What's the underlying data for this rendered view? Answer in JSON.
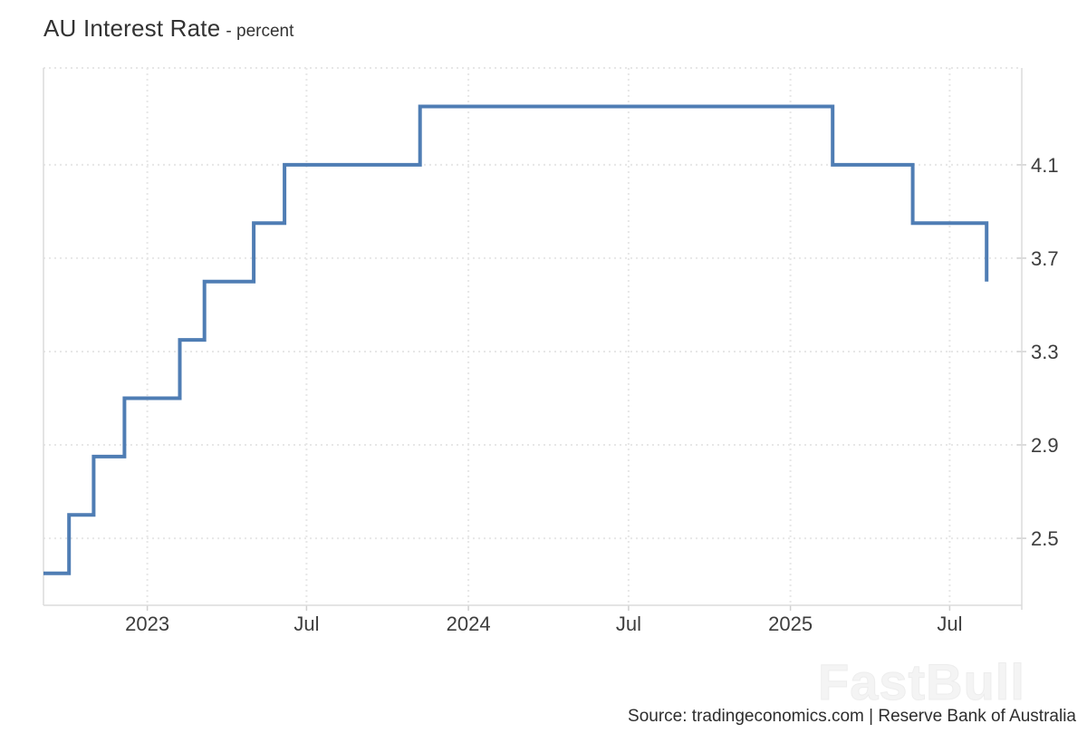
{
  "page": {
    "title": "AU Interest Rate",
    "subtitle": "- percent",
    "source": "Source: tradingeconomics.com | Reserve Bank of Australia",
    "watermark": "FastBull"
  },
  "colors": {
    "line": "#4f7db4",
    "grid": "#e7e7e7",
    "border": "#dcdcdc",
    "label": "#3d3d3d"
  },
  "chart_data": {
    "type": "line",
    "subtype": "step",
    "title": "AU Interest Rate",
    "ylabel": "percent",
    "xlabel": "",
    "grid": "dotted",
    "legend": "none",
    "x_domain": [
      "2022-09-05",
      "2025-09-21"
    ],
    "ylim": [
      2.213,
      4.515
    ],
    "x_ticks": [
      {
        "date": "2023-01-01",
        "label": "2023"
      },
      {
        "date": "2023-07-01",
        "label": "Jul"
      },
      {
        "date": "2024-01-01",
        "label": "2024"
      },
      {
        "date": "2024-07-01",
        "label": "Jul"
      },
      {
        "date": "2025-01-01",
        "label": "2025"
      },
      {
        "date": "2025-07-01",
        "label": "Jul"
      }
    ],
    "y_ticks": [
      4.1,
      3.7,
      3.3,
      2.9,
      2.5
    ],
    "series": [
      {
        "name": "AU Interest Rate",
        "color": "#4f7db4",
        "points": [
          {
            "date": "2022-09-06",
            "value": 2.35
          },
          {
            "date": "2022-10-04",
            "value": 2.6
          },
          {
            "date": "2022-11-01",
            "value": 2.85
          },
          {
            "date": "2022-12-06",
            "value": 3.1
          },
          {
            "date": "2023-02-07",
            "value": 3.35
          },
          {
            "date": "2023-03-07",
            "value": 3.6
          },
          {
            "date": "2023-05-02",
            "value": 3.85
          },
          {
            "date": "2023-06-06",
            "value": 4.1
          },
          {
            "date": "2023-11-07",
            "value": 4.35
          },
          {
            "date": "2025-02-18",
            "value": 4.1
          },
          {
            "date": "2025-05-20",
            "value": 3.85
          },
          {
            "date": "2025-08-12",
            "value": 3.6
          }
        ]
      }
    ]
  }
}
